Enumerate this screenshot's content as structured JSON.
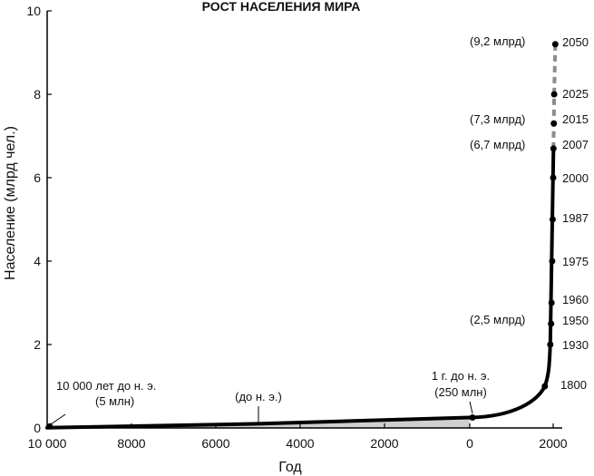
{
  "chart_data": {
    "type": "line",
    "title": "РОСТ НАСЕЛЕНИЯ МИРА",
    "xlabel": "Год",
    "ylabel": "Население (млрд чел.)",
    "ylim": [
      0,
      10
    ],
    "yticks": [
      "0",
      "2",
      "4",
      "6",
      "8",
      "10"
    ],
    "xticks": [
      "10 000",
      "8000",
      "6000",
      "4000",
      "2000",
      "0",
      "2000"
    ],
    "series": [
      {
        "name": "population",
        "points": [
          {
            "x": -10000,
            "y": 0.005
          },
          {
            "x": -5000,
            "y": 0.1
          },
          {
            "x": 0,
            "y": 0.25
          },
          {
            "x": 1800,
            "y": 1.0
          },
          {
            "x": 1930,
            "y": 2.0
          },
          {
            "x": 1950,
            "y": 2.5
          },
          {
            "x": 1960,
            "y": 3.0
          },
          {
            "x": 1975,
            "y": 4.0
          },
          {
            "x": 1987,
            "y": 5.0
          },
          {
            "x": 2000,
            "y": 6.0
          },
          {
            "x": 2007,
            "y": 6.7
          }
        ]
      },
      {
        "name": "projection",
        "dashed": true,
        "points": [
          {
            "x": 2015,
            "y": 7.3
          },
          {
            "x": 2025,
            "y": 8.0
          },
          {
            "x": 2050,
            "y": 9.2
          }
        ]
      }
    ],
    "year_labels": [
      {
        "label": "1800",
        "y": 1.0
      },
      {
        "label": "1930",
        "y": 2.0
      },
      {
        "label": "1950",
        "y": 2.5
      },
      {
        "label": "1960",
        "y": 3.0
      },
      {
        "label": "1975",
        "y": 4.0
      },
      {
        "label": "1987",
        "y": 5.0
      },
      {
        "label": "2000",
        "y": 6.0
      },
      {
        "label": "2007",
        "y": 6.7
      },
      {
        "label": "2015",
        "y": 7.3
      },
      {
        "label": "2025",
        "y": 8.0
      },
      {
        "label": "2050",
        "y": 9.2
      }
    ],
    "annotations": {
      "bce_10000_line1": "10 000 лет до н. э.",
      "bce_10000_line2": "(5 млн)",
      "bce_mid": "(до н. э.)",
      "year1_line1": "1 г. до н. э.",
      "year1_line2": "(250 млн)",
      "pop_2_5": "(2,5 млрд)",
      "pop_6_7": "(6,7 млрд)",
      "pop_7_3": "(7,3 млрд)",
      "pop_9_2": "(9,2 млрд)"
    },
    "colors": {
      "line": "#000000",
      "projection": "#8c8c8c",
      "fill": "#cfcfcf"
    }
  }
}
